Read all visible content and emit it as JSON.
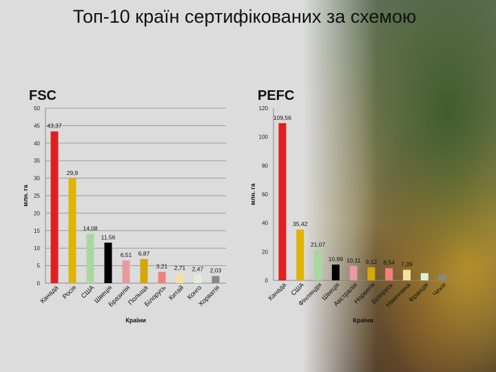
{
  "title": "Топ-10 країн сертифікованих за схемою",
  "chart_data": [
    {
      "type": "bar",
      "title": "FSC",
      "xlabel": "Країни",
      "ylabel": "млн. га",
      "ylim": [
        0,
        50
      ],
      "yticks": [
        0,
        5,
        10,
        15,
        20,
        25,
        30,
        35,
        40,
        45,
        50
      ],
      "grid": "horizontal",
      "categories": [
        "Канада",
        "Росія",
        "США",
        "Швеція",
        "Бразилія",
        "Польща",
        "Білорусь",
        "Китай",
        "Конго",
        "Хорватія"
      ],
      "values": [
        43.37,
        29.9,
        14.08,
        11.56,
        6.51,
        6.87,
        3.21,
        2.71,
        2.47,
        2.03
      ],
      "value_labels": [
        "43,37",
        "29,9",
        "14,08",
        "11,56",
        "6,51",
        "6,87",
        "3,21",
        "2,71",
        "2,47",
        "2,03"
      ],
      "colors": [
        "#e02020",
        "#e0b400",
        "#a8d8a0",
        "#000000",
        "#e89aa0",
        "#d4a800",
        "#f08080",
        "#f5e0a0",
        "#dff0d8",
        "#888888"
      ]
    },
    {
      "type": "bar",
      "title": "PEFC",
      "xlabel": "Країни",
      "ylabel": "млн. га",
      "ylim": [
        0,
        120
      ],
      "yticks": [
        0,
        20,
        40,
        60,
        80,
        100,
        120
      ],
      "grid": "none",
      "categories": [
        "Канада",
        "США",
        "Фінляндія",
        "Швеція",
        "Австралія",
        "Норвегія",
        "Білорусь",
        "Німеччина",
        "Франція",
        "Чехія"
      ],
      "values": [
        109.56,
        35.42,
        21.07,
        10.99,
        10.11,
        9.12,
        8.54,
        7.39,
        5.0,
        4.0
      ],
      "value_labels": [
        "109,56",
        "35,42",
        "21,07",
        "10,99",
        "10,11",
        "9,12",
        "8,54",
        "7,39",
        "",
        ""
      ],
      "colors": [
        "#e02020",
        "#e0b400",
        "#a8d8a0",
        "#000000",
        "#e89aa0",
        "#d4a800",
        "#f08080",
        "#f5e0a0",
        "#dff0d8",
        "#888888"
      ]
    }
  ]
}
